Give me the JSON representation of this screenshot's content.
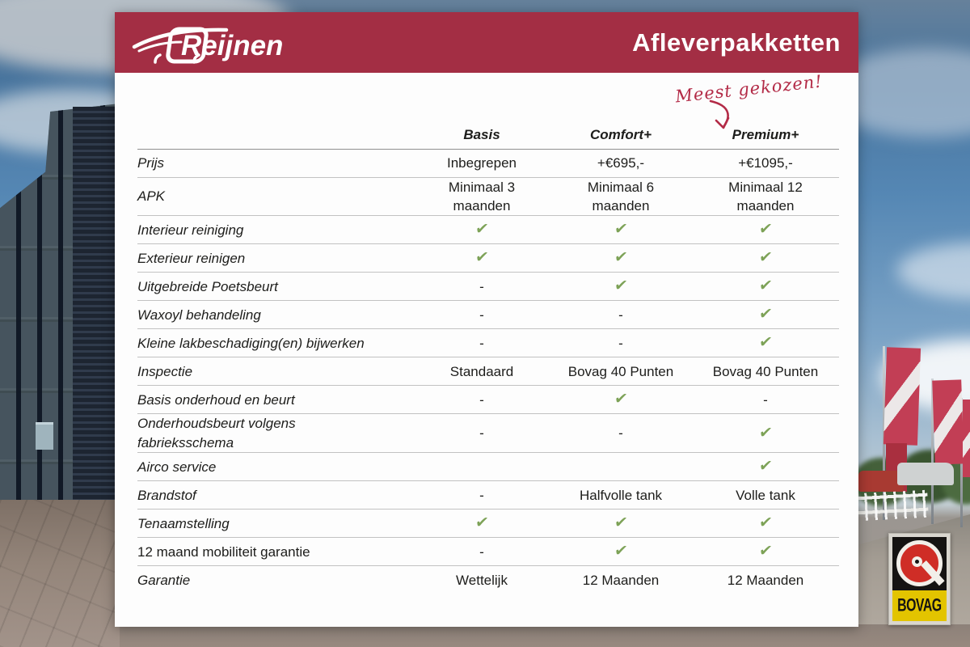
{
  "header": {
    "brand": "Reijnen",
    "title": "Afleverpakketten"
  },
  "annotation": {
    "text": "Meest gekozen!"
  },
  "table": {
    "columns": [
      "Basis",
      "Comfort+",
      "Premium+"
    ],
    "rows": [
      {
        "label": "Prijs",
        "values": [
          "Inbegrepen",
          "+€695,-",
          "+€1095,-"
        ]
      },
      {
        "label": "APK",
        "values": [
          "Minimaal 3\nmaanden",
          "Minimaal 6\nmaanden",
          "Minimaal 12\nmaanden"
        ]
      },
      {
        "label": "Interieur reiniging",
        "values": [
          "✔",
          "✔",
          "✔"
        ]
      },
      {
        "label": "Exterieur reinigen",
        "values": [
          "✔",
          "✔",
          "✔"
        ]
      },
      {
        "label": "Uitgebreide Poetsbeurt",
        "values": [
          "-",
          "✔",
          "✔"
        ]
      },
      {
        "label": "Waxoyl behandeling",
        "values": [
          "-",
          "-",
          "✔"
        ]
      },
      {
        "label": "Kleine lakbeschadiging(en) bijwerken",
        "values": [
          "-",
          "-",
          "✔"
        ]
      },
      {
        "label": "Inspectie",
        "values": [
          "Standaard",
          "Bovag 40 Punten",
          "Bovag 40 Punten"
        ]
      },
      {
        "label": "Basis onderhoud en beurt",
        "values": [
          "-",
          "✔",
          "-"
        ]
      },
      {
        "label": "Onderhoudsbeurt volgens\nfabrieksschema",
        "values": [
          "-",
          "-",
          "✔"
        ]
      },
      {
        "label": "Airco service",
        "values": [
          "",
          "",
          "✔"
        ]
      },
      {
        "label": "Brandstof",
        "values": [
          "-",
          "Halfvolle tank",
          "Volle tank"
        ]
      },
      {
        "label": "Tenaamstelling",
        "values": [
          "✔",
          "✔",
          "✔"
        ]
      },
      {
        "label": "12 maand mobiliteit garantie",
        "values": [
          "-",
          "✔",
          "✔"
        ],
        "upright": true
      },
      {
        "label": "Garantie",
        "values": [
          "Wettelijk",
          "12 Maanden",
          "12 Maanden"
        ]
      }
    ]
  },
  "badge": {
    "text": "BOVAG"
  },
  "colors": {
    "brand_crimson": "#a32e44",
    "annotation_red": "#b32b47",
    "check_green": "#7da257",
    "bovag_yellow": "#e3c400",
    "bovag_red": "#cf2d26"
  }
}
